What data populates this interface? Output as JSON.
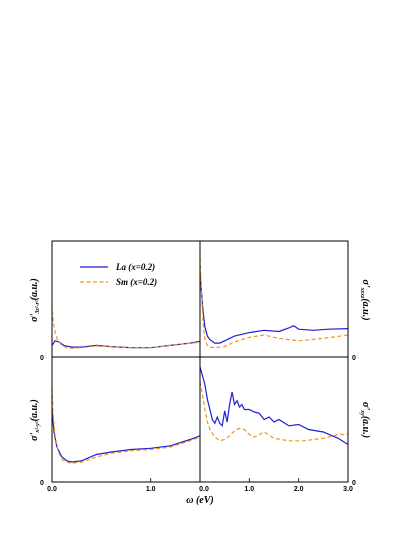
{
  "colors": {
    "la": "#1f1fd8",
    "sm": "#f0961e",
    "axis": "#000000"
  },
  "chart_data": {
    "type": "line",
    "layout": "2x2 panel grid",
    "legend": {
      "placement": "top-left panel, upper-left",
      "entries": [
        "La (x=0.2)",
        "Sm (x=0.2)"
      ]
    },
    "x_label": "ω (eV)",
    "panels": [
      {
        "id": "a1g-top-left",
        "ylabel": "σ'x²-y²(a.u.) [top]",
        "ylabel_text": "σ'",
        "ylabel_sub": "3z²-r²",
        "ylabel_suffix": "(a.u.)",
        "xlim": [
          0,
          1.5
        ],
        "ylim": [
          0,
          1
        ],
        "y_ticks": [
          "0"
        ],
        "x_ticks": [],
        "series": [
          {
            "name": "La (x=0.2)",
            "style": "solid",
            "x": [
              0,
              0.03,
              0.07,
              0.12,
              0.2,
              0.3,
              0.45,
              0.6,
              0.8,
              1.0,
              1.2,
              1.4,
              1.5
            ],
            "y": [
              0.1,
              0.14,
              0.13,
              0.1,
              0.085,
              0.085,
              0.1,
              0.09,
              0.08,
              0.08,
              0.1,
              0.12,
              0.135
            ]
          },
          {
            "name": "Sm (x=0.2)",
            "style": "dashed",
            "x": [
              0,
              0.01,
              0.03,
              0.06,
              0.1,
              0.15,
              0.2,
              0.3,
              0.45,
              0.6,
              0.8,
              1.0,
              1.2,
              1.4,
              1.5
            ],
            "y": [
              0.4,
              0.32,
              0.22,
              0.14,
              0.1,
              0.08,
              0.075,
              0.08,
              0.095,
              0.09,
              0.08,
              0.08,
              0.1,
              0.12,
              0.125
            ]
          }
        ]
      },
      {
        "id": "b-top-right",
        "ylabel": "σ'xzxz(a.u.)",
        "xlim": [
          0,
          3.0
        ],
        "ylim": [
          0,
          1
        ],
        "y_ticks": [],
        "x_ticks": [],
        "series": [
          {
            "name": "La (x=0.2)",
            "style": "solid",
            "x": [
              0,
              0.03,
              0.06,
              0.1,
              0.15,
              0.2,
              0.3,
              0.4,
              0.5,
              0.7,
              1.0,
              1.3,
              1.6,
              1.8,
              1.9,
              2.0,
              2.3,
              2.6,
              3.0
            ],
            "y": [
              0.72,
              0.56,
              0.4,
              0.26,
              0.18,
              0.15,
              0.12,
              0.12,
              0.14,
              0.18,
              0.21,
              0.23,
              0.22,
              0.25,
              0.27,
              0.24,
              0.23,
              0.24,
              0.245
            ]
          },
          {
            "name": "Sm (x=0.2)",
            "style": "dashed",
            "x": [
              0,
              0.03,
              0.06,
              0.1,
              0.15,
              0.2,
              0.3,
              0.5,
              0.7,
              1.0,
              1.3,
              1.6,
              2.0,
              2.5,
              3.0
            ],
            "y": [
              0.85,
              0.55,
              0.3,
              0.15,
              0.1,
              0.085,
              0.08,
              0.09,
              0.13,
              0.17,
              0.19,
              0.16,
              0.14,
              0.16,
              0.19
            ]
          }
        ]
      },
      {
        "id": "c-bottom-left",
        "ylabel_text": "σ'",
        "ylabel_sub": "x²-y²",
        "ylabel_suffix": "(a.u.)",
        "xlim": [
          0,
          1.5
        ],
        "ylim": [
          0,
          1
        ],
        "y_ticks": [
          "0"
        ],
        "x_ticks": [
          "0.0",
          "1.0",
          "2.0"
        ],
        "series": [
          {
            "name": "La (x=0.2)",
            "style": "solid",
            "x": [
              0,
              0.02,
              0.05,
              0.1,
              0.15,
              0.2,
              0.3,
              0.45,
              0.6,
              0.8,
              1.0,
              1.2,
              1.4,
              1.5
            ],
            "y": [
              0.58,
              0.4,
              0.28,
              0.2,
              0.17,
              0.16,
              0.17,
              0.22,
              0.24,
              0.26,
              0.27,
              0.29,
              0.34,
              0.37
            ]
          },
          {
            "name": "Sm (x=0.2)",
            "style": "dashed",
            "x": [
              0,
              0.01,
              0.03,
              0.06,
              0.1,
              0.15,
              0.2,
              0.3,
              0.45,
              0.6,
              0.8,
              1.0,
              1.2,
              1.4,
              1.5
            ],
            "y": [
              0.75,
              0.55,
              0.38,
              0.25,
              0.18,
              0.16,
              0.15,
              0.16,
              0.2,
              0.23,
              0.25,
              0.26,
              0.28,
              0.33,
              0.36
            ]
          }
        ]
      },
      {
        "id": "d-bottom-right",
        "ylabel_text": "σ'",
        "ylabel_sub": "xy",
        "ylabel_suffix": "(a.u.)",
        "xlim": [
          0,
          3.0
        ],
        "ylim": [
          0,
          1
        ],
        "y_ticks": [],
        "x_ticks": [
          "0.0",
          "1.0",
          "2.0",
          "3.0"
        ],
        "series": [
          {
            "name": "La (x=0.2)",
            "style": "solid",
            "x": [
              0,
              0.05,
              0.1,
              0.15,
              0.2,
              0.25,
              0.3,
              0.35,
              0.4,
              0.45,
              0.5,
              0.55,
              0.6,
              0.65,
              0.7,
              0.75,
              0.8,
              0.85,
              0.9,
              1.0,
              1.1,
              1.2,
              1.3,
              1.4,
              1.5,
              1.6,
              1.8,
              2.0,
              2.2,
              2.5,
              2.8,
              3.0
            ],
            "y": [
              0.92,
              0.85,
              0.78,
              0.66,
              0.58,
              0.5,
              0.47,
              0.52,
              0.47,
              0.45,
              0.57,
              0.48,
              0.62,
              0.72,
              0.62,
              0.65,
              0.6,
              0.62,
              0.58,
              0.58,
              0.56,
              0.55,
              0.5,
              0.52,
              0.48,
              0.5,
              0.45,
              0.46,
              0.42,
              0.4,
              0.35,
              0.3
            ]
          },
          {
            "name": "Sm (x=0.2)",
            "style": "dashed",
            "x": [
              0,
              0.05,
              0.1,
              0.15,
              0.2,
              0.3,
              0.4,
              0.5,
              0.6,
              0.7,
              0.8,
              0.9,
              1.0,
              1.1,
              1.2,
              1.3,
              1.5,
              1.8,
              2.1,
              2.5,
              2.8,
              3.0
            ],
            "y": [
              0.8,
              0.7,
              0.58,
              0.48,
              0.42,
              0.36,
              0.33,
              0.34,
              0.37,
              0.41,
              0.43,
              0.42,
              0.38,
              0.36,
              0.38,
              0.4,
              0.35,
              0.33,
              0.33,
              0.35,
              0.38,
              0.38
            ]
          }
        ]
      }
    ]
  }
}
